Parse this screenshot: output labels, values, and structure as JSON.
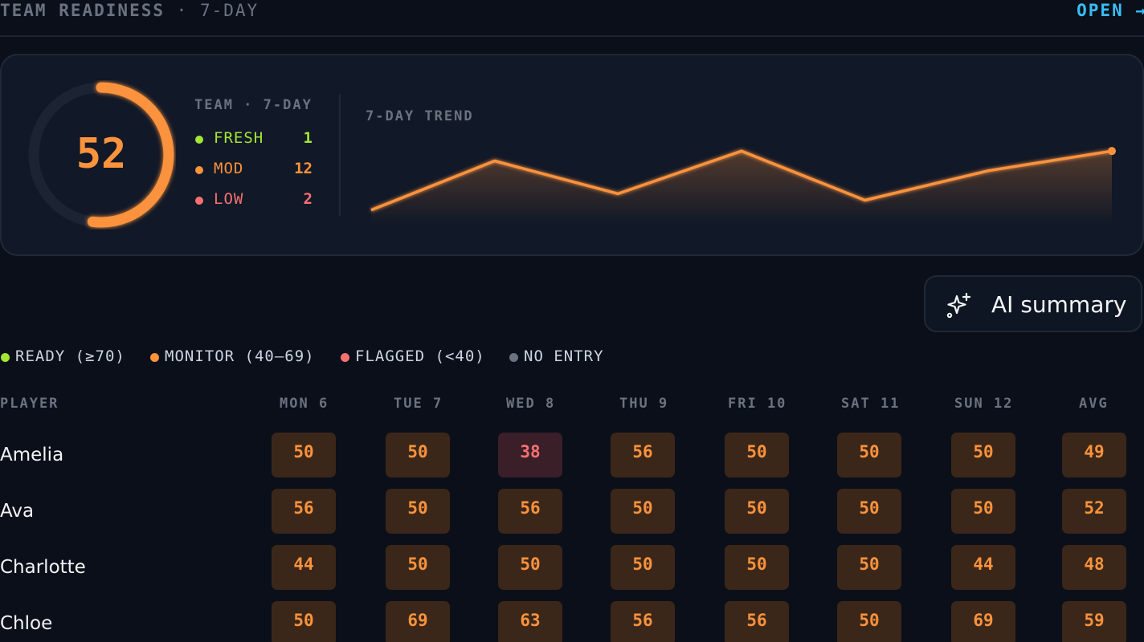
{
  "header": {
    "title": "TEAM READINESS",
    "subtitle": "· 7-DAY",
    "open_label": "OPEN →"
  },
  "team": {
    "score": "52",
    "score_value": 52,
    "heading": "TEAM · 7-DAY",
    "stats": [
      {
        "label": "FRESH",
        "value": "1",
        "color": "#a3e635"
      },
      {
        "label": "MOD",
        "value": "12",
        "color": "#fb923c"
      },
      {
        "label": "LOW",
        "value": "2",
        "color": "#f87171"
      }
    ]
  },
  "trend": {
    "heading": "7-DAY TREND",
    "values": [
      40,
      55,
      45,
      58,
      43,
      52,
      58
    ]
  },
  "ai_button": {
    "label": "AI summary",
    "icon": "sparkles-icon"
  },
  "legend": [
    {
      "label": "READY (≥70)",
      "color": "#a3e635"
    },
    {
      "label": "MONITOR (40–69)",
      "color": "#fb923c"
    },
    {
      "label": "FLAGGED (<40)",
      "color": "#f87171"
    },
    {
      "label": "NO ENTRY",
      "color": "#6b7280"
    }
  ],
  "table": {
    "player_header": "PLAYER",
    "columns": [
      "MON 6",
      "TUE 7",
      "WED 8",
      "THU 9",
      "FRI 10",
      "SAT 11",
      "SUN 12",
      "AVG"
    ],
    "rows": [
      {
        "name": "Amelia",
        "values": [
          "50",
          "50",
          "38",
          "56",
          "50",
          "50",
          "50",
          "49"
        ]
      },
      {
        "name": "Ava",
        "values": [
          "56",
          "50",
          "56",
          "50",
          "50",
          "50",
          "50",
          "52"
        ]
      },
      {
        "name": "Charlotte",
        "values": [
          "44",
          "50",
          "50",
          "50",
          "50",
          "50",
          "44",
          "48"
        ]
      },
      {
        "name": "Chloe",
        "values": [
          "50",
          "69",
          "63",
          "56",
          "56",
          "50",
          "69",
          "59"
        ]
      }
    ]
  }
}
